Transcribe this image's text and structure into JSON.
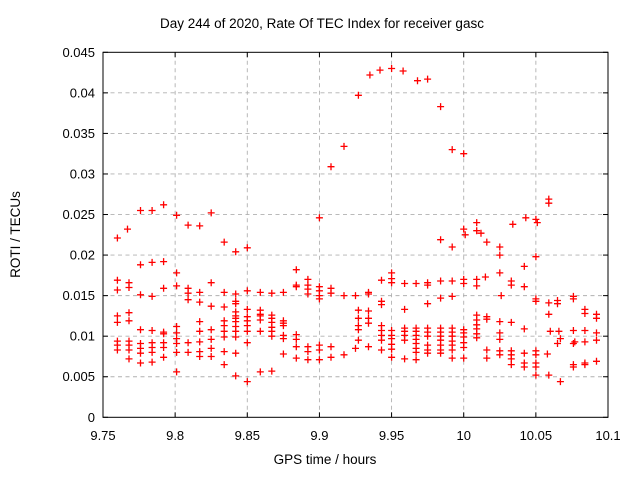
{
  "window": {
    "background": "#ffffff"
  },
  "chart_data": {
    "type": "scatter",
    "title": "Day 244 of 2020, Rate Of TEC Index for receiver gasc",
    "xlabel": "GPS time / hours",
    "ylabel": "ROTI / TECUs",
    "xlim": [
      9.75,
      10.1
    ],
    "ylim": [
      0,
      0.045
    ],
    "x_ticks": [
      9.75,
      9.8,
      9.85,
      9.9,
      9.95,
      10,
      10.05,
      10.1
    ],
    "x_tick_labels": [
      "9.75",
      "9.8",
      "9.85",
      "9.9",
      "9.95",
      "10",
      "10.05",
      "10.1"
    ],
    "y_ticks": [
      0,
      0.005,
      0.01,
      0.015,
      0.02,
      0.025,
      0.03,
      0.035,
      0.04,
      0.045
    ],
    "y_tick_labels": [
      "0",
      "0.005",
      "0.01",
      "0.015",
      "0.02",
      "0.025",
      "0.03",
      "0.035",
      "0.04",
      "0.045"
    ],
    "grid": true,
    "legend": "none",
    "marker": {
      "shape": "plus",
      "color": "#ff0000",
      "size": 7
    },
    "grid_color": "#b0b0b0",
    "border_color": "#000000",
    "points": [
      [
        9.76,
        0.0221
      ],
      [
        9.76,
        0.0169
      ],
      [
        9.76,
        0.0157
      ],
      [
        9.76,
        0.0125
      ],
      [
        9.76,
        0.0117
      ],
      [
        9.76,
        0.0094
      ],
      [
        9.76,
        0.0089
      ],
      [
        9.76,
        0.0083
      ],
      [
        9.767,
        0.0232
      ],
      [
        9.768,
        0.0166
      ],
      [
        9.768,
        0.016
      ],
      [
        9.768,
        0.0129
      ],
      [
        9.768,
        0.0119
      ],
      [
        9.768,
        0.0094
      ],
      [
        9.768,
        0.0089
      ],
      [
        9.768,
        0.0083
      ],
      [
        9.768,
        0.0072
      ],
      [
        9.776,
        0.0255
      ],
      [
        9.776,
        0.0188
      ],
      [
        9.776,
        0.0151
      ],
      [
        9.776,
        0.0108
      ],
      [
        9.776,
        0.0091
      ],
      [
        9.776,
        0.0085
      ],
      [
        9.776,
        0.0079
      ],
      [
        9.776,
        0.0067
      ],
      [
        9.784,
        0.0255
      ],
      [
        9.784,
        0.0191
      ],
      [
        9.784,
        0.0149
      ],
      [
        9.784,
        0.0107
      ],
      [
        9.784,
        0.0092
      ],
      [
        9.784,
        0.0086
      ],
      [
        9.784,
        0.008
      ],
      [
        9.784,
        0.0068
      ],
      [
        9.792,
        0.0262
      ],
      [
        9.792,
        0.0192
      ],
      [
        9.792,
        0.0159
      ],
      [
        9.792,
        0.0105
      ],
      [
        9.792,
        0.0103
      ],
      [
        9.792,
        0.0092
      ],
      [
        9.792,
        0.0086
      ],
      [
        9.792,
        0.0074
      ],
      [
        9.801,
        0.0249
      ],
      [
        9.801,
        0.0178
      ],
      [
        9.801,
        0.0162
      ],
      [
        9.801,
        0.0112
      ],
      [
        9.801,
        0.0104
      ],
      [
        9.801,
        0.0097
      ],
      [
        9.801,
        0.0091
      ],
      [
        9.801,
        0.008
      ],
      [
        9.801,
        0.0056
      ],
      [
        9.809,
        0.0237
      ],
      [
        9.809,
        0.0159
      ],
      [
        9.809,
        0.0153
      ],
      [
        9.809,
        0.0145
      ],
      [
        9.809,
        0.0092
      ],
      [
        9.809,
        0.008
      ],
      [
        9.817,
        0.0236
      ],
      [
        9.817,
        0.0154
      ],
      [
        9.817,
        0.0142
      ],
      [
        9.817,
        0.0118
      ],
      [
        9.817,
        0.0106
      ],
      [
        9.817,
        0.0093
      ],
      [
        9.817,
        0.0081
      ],
      [
        9.817,
        0.0075
      ],
      [
        9.825,
        0.0252
      ],
      [
        9.825,
        0.0166
      ],
      [
        9.825,
        0.0137
      ],
      [
        9.825,
        0.0108
      ],
      [
        9.825,
        0.0096
      ],
      [
        9.825,
        0.0085
      ],
      [
        9.825,
        0.0075
      ],
      [
        9.834,
        0.0216
      ],
      [
        9.834,
        0.0154
      ],
      [
        9.834,
        0.0136
      ],
      [
        9.834,
        0.0119
      ],
      [
        9.834,
        0.0113
      ],
      [
        9.834,
        0.0106
      ],
      [
        9.834,
        0.0099
      ],
      [
        9.834,
        0.0081
      ],
      [
        9.834,
        0.0065
      ],
      [
        9.842,
        0.0204
      ],
      [
        9.842,
        0.0152
      ],
      [
        9.842,
        0.0143
      ],
      [
        9.842,
        0.014
      ],
      [
        9.842,
        0.013
      ],
      [
        9.842,
        0.0125
      ],
      [
        9.842,
        0.0122
      ],
      [
        9.842,
        0.0118
      ],
      [
        9.842,
        0.0112
      ],
      [
        9.842,
        0.0106
      ],
      [
        9.842,
        0.0099
      ],
      [
        9.842,
        0.0079
      ],
      [
        9.842,
        0.0051
      ],
      [
        9.85,
        0.0209
      ],
      [
        9.85,
        0.0156
      ],
      [
        9.85,
        0.0133
      ],
      [
        9.85,
        0.0124
      ],
      [
        9.85,
        0.0119
      ],
      [
        9.85,
        0.0113
      ],
      [
        9.85,
        0.0106
      ],
      [
        9.85,
        0.0092
      ],
      [
        9.85,
        0.0044
      ],
      [
        9.859,
        0.0154
      ],
      [
        9.859,
        0.0132
      ],
      [
        9.859,
        0.0127
      ],
      [
        9.859,
        0.0125
      ],
      [
        9.859,
        0.012
      ],
      [
        9.859,
        0.0106
      ],
      [
        9.859,
        0.0056
      ],
      [
        9.867,
        0.0153
      ],
      [
        9.867,
        0.0126
      ],
      [
        9.867,
        0.0122
      ],
      [
        9.867,
        0.0117
      ],
      [
        9.867,
        0.0111
      ],
      [
        9.867,
        0.0106
      ],
      [
        9.867,
        0.01
      ],
      [
        9.867,
        0.0057
      ],
      [
        9.875,
        0.0154
      ],
      [
        9.875,
        0.0119
      ],
      [
        9.875,
        0.0116
      ],
      [
        9.875,
        0.0113
      ],
      [
        9.875,
        0.0101
      ],
      [
        9.875,
        0.0097
      ],
      [
        9.875,
        0.0078
      ],
      [
        9.884,
        0.0182
      ],
      [
        9.884,
        0.0163
      ],
      [
        9.884,
        0.0161
      ],
      [
        9.884,
        0.0102
      ],
      [
        9.884,
        0.0096
      ],
      [
        9.884,
        0.0087
      ],
      [
        9.884,
        0.0073
      ],
      [
        9.892,
        0.017
      ],
      [
        9.892,
        0.0163
      ],
      [
        9.892,
        0.0158
      ],
      [
        9.892,
        0.0152
      ],
      [
        9.892,
        0.0087
      ],
      [
        9.892,
        0.0081
      ],
      [
        9.892,
        0.0071
      ],
      [
        9.9,
        0.0246
      ],
      [
        9.9,
        0.0161
      ],
      [
        9.9,
        0.0156
      ],
      [
        9.9,
        0.015
      ],
      [
        9.9,
        0.0146
      ],
      [
        9.9,
        0.0089
      ],
      [
        9.9,
        0.0083
      ],
      [
        9.9,
        0.0071
      ],
      [
        9.908,
        0.0309
      ],
      [
        9.908,
        0.0159
      ],
      [
        9.908,
        0.0153
      ],
      [
        9.908,
        0.0087
      ],
      [
        9.908,
        0.0074
      ],
      [
        9.917,
        0.0334
      ],
      [
        9.917,
        0.015
      ],
      [
        9.917,
        0.0077
      ],
      [
        9.925,
        0.015
      ],
      [
        9.925,
        0.0085
      ],
      [
        9.927,
        0.0397
      ],
      [
        9.927,
        0.0132
      ],
      [
        9.927,
        0.0122
      ],
      [
        9.927,
        0.0113
      ],
      [
        9.927,
        0.0108
      ],
      [
        9.927,
        0.0095
      ],
      [
        9.934,
        0.0154
      ],
      [
        9.934,
        0.0152
      ],
      [
        9.934,
        0.0131
      ],
      [
        9.934,
        0.0122
      ],
      [
        9.934,
        0.0116
      ],
      [
        9.934,
        0.0087
      ],
      [
        9.935,
        0.0422
      ],
      [
        9.942,
        0.0428
      ],
      [
        9.943,
        0.0169
      ],
      [
        9.943,
        0.0143
      ],
      [
        9.943,
        0.0139
      ],
      [
        9.943,
        0.0113
      ],
      [
        9.943,
        0.0107
      ],
      [
        9.943,
        0.0101
      ],
      [
        9.943,
        0.0095
      ],
      [
        9.943,
        0.0083
      ],
      [
        9.95,
        0.043
      ],
      [
        9.95,
        0.0178
      ],
      [
        9.95,
        0.0171
      ],
      [
        9.95,
        0.0166
      ],
      [
        9.95,
        0.0107
      ],
      [
        9.95,
        0.0101
      ],
      [
        9.95,
        0.0097
      ],
      [
        9.95,
        0.009
      ],
      [
        9.95,
        0.0084
      ],
      [
        9.95,
        0.0074
      ],
      [
        9.958,
        0.0427
      ],
      [
        9.959,
        0.0165
      ],
      [
        9.959,
        0.0133
      ],
      [
        9.959,
        0.011
      ],
      [
        9.959,
        0.0106
      ],
      [
        9.959,
        0.0101
      ],
      [
        9.959,
        0.0095
      ],
      [
        9.959,
        0.0072
      ],
      [
        9.967,
        0.0165
      ],
      [
        9.967,
        0.011
      ],
      [
        9.967,
        0.0106
      ],
      [
        9.967,
        0.0101
      ],
      [
        9.967,
        0.0096
      ],
      [
        9.967,
        0.0091
      ],
      [
        9.967,
        0.0085
      ],
      [
        9.967,
        0.008
      ],
      [
        9.967,
        0.0071
      ],
      [
        9.968,
        0.0415
      ],
      [
        9.975,
        0.0417
      ],
      [
        9.975,
        0.0166
      ],
      [
        9.975,
        0.0163
      ],
      [
        9.975,
        0.014
      ],
      [
        9.975,
        0.011
      ],
      [
        9.975,
        0.0105
      ],
      [
        9.975,
        0.01
      ],
      [
        9.975,
        0.0089
      ],
      [
        9.975,
        0.0083
      ],
      [
        9.975,
        0.0079
      ],
      [
        9.984,
        0.0383
      ],
      [
        9.984,
        0.0219
      ],
      [
        9.984,
        0.0168
      ],
      [
        9.984,
        0.0147
      ],
      [
        9.984,
        0.011
      ],
      [
        9.984,
        0.0105
      ],
      [
        9.984,
        0.01
      ],
      [
        9.984,
        0.0095
      ],
      [
        9.984,
        0.0089
      ],
      [
        9.984,
        0.0083
      ],
      [
        9.984,
        0.0079
      ],
      [
        9.992,
        0.033
      ],
      [
        9.992,
        0.021
      ],
      [
        9.992,
        0.0168
      ],
      [
        9.992,
        0.0149
      ],
      [
        9.992,
        0.011
      ],
      [
        9.992,
        0.0105
      ],
      [
        9.992,
        0.01
      ],
      [
        9.992,
        0.0094
      ],
      [
        9.992,
        0.0089
      ],
      [
        9.992,
        0.0083
      ],
      [
        9.992,
        0.0073
      ],
      [
        10.0,
        0.0325
      ],
      [
        10.0,
        0.0232
      ],
      [
        10.001,
        0.0225
      ],
      [
        10.0,
        0.017
      ],
      [
        10.0,
        0.0165
      ],
      [
        10.0,
        0.0108
      ],
      [
        10.0,
        0.0104
      ],
      [
        10.0,
        0.0099
      ],
      [
        10.0,
        0.0092
      ],
      [
        10.0,
        0.0086
      ],
      [
        10.0,
        0.0073
      ],
      [
        10.009,
        0.024
      ],
      [
        10.009,
        0.023
      ],
      [
        10.009,
        0.017
      ],
      [
        10.009,
        0.0162
      ],
      [
        10.009,
        0.0126
      ],
      [
        10.009,
        0.012
      ],
      [
        10.009,
        0.0114
      ],
      [
        10.009,
        0.0109
      ],
      [
        10.009,
        0.0103
      ],
      [
        10.009,
        0.0098
      ],
      [
        10.012,
        0.0227
      ],
      [
        10.015,
        0.0173
      ],
      [
        10.016,
        0.0216
      ],
      [
        10.016,
        0.0124
      ],
      [
        10.016,
        0.0121
      ],
      [
        10.016,
        0.0083
      ],
      [
        10.016,
        0.0073
      ],
      [
        10.025,
        0.021
      ],
      [
        10.025,
        0.02
      ],
      [
        10.025,
        0.0178
      ],
      [
        10.026,
        0.015
      ],
      [
        10.025,
        0.0118
      ],
      [
        10.025,
        0.0104
      ],
      [
        10.025,
        0.0096
      ],
      [
        10.025,
        0.0082
      ],
      [
        10.025,
        0.0077
      ],
      [
        10.034,
        0.0238
      ],
      [
        10.033,
        0.0168
      ],
      [
        10.033,
        0.0163
      ],
      [
        10.033,
        0.0117
      ],
      [
        10.033,
        0.0082
      ],
      [
        10.033,
        0.0077
      ],
      [
        10.033,
        0.0072
      ],
      [
        10.033,
        0.0065
      ],
      [
        10.043,
        0.0246
      ],
      [
        10.042,
        0.0186
      ],
      [
        10.042,
        0.0161
      ],
      [
        10.042,
        0.0109
      ],
      [
        10.042,
        0.0079
      ],
      [
        10.042,
        0.0067
      ],
      [
        10.042,
        0.0062
      ],
      [
        10.05,
        0.0244
      ],
      [
        10.051,
        0.024
      ],
      [
        10.05,
        0.0198
      ],
      [
        10.05,
        0.0146
      ],
      [
        10.05,
        0.0143
      ],
      [
        10.05,
        0.0082
      ],
      [
        10.05,
        0.0077
      ],
      [
        10.05,
        0.0067
      ],
      [
        10.05,
        0.0062
      ],
      [
        10.05,
        0.0052
      ],
      [
        10.059,
        0.0269
      ],
      [
        10.059,
        0.0264
      ],
      [
        10.059,
        0.0141
      ],
      [
        10.059,
        0.0127
      ],
      [
        10.06,
        0.0106
      ],
      [
        10.058,
        0.0078
      ],
      [
        10.059,
        0.0052
      ],
      [
        10.065,
        0.0144
      ],
      [
        10.065,
        0.014
      ],
      [
        10.066,
        0.0106
      ],
      [
        10.067,
        0.0097
      ],
      [
        10.065,
        0.0091
      ],
      [
        10.067,
        0.0044
      ],
      [
        10.076,
        0.0149
      ],
      [
        10.076,
        0.0146
      ],
      [
        10.076,
        0.0107
      ],
      [
        10.077,
        0.0093
      ],
      [
        10.076,
        0.0091
      ],
      [
        10.076,
        0.0065
      ],
      [
        10.076,
        0.0062
      ],
      [
        10.084,
        0.0133
      ],
      [
        10.084,
        0.0128
      ],
      [
        10.084,
        0.0107
      ],
      [
        10.084,
        0.0093
      ],
      [
        10.084,
        0.0067
      ],
      [
        10.084,
        0.0065
      ],
      [
        10.092,
        0.0127
      ],
      [
        10.092,
        0.0122
      ],
      [
        10.092,
        0.0104
      ],
      [
        10.092,
        0.0095
      ],
      [
        10.092,
        0.0069
      ]
    ]
  }
}
